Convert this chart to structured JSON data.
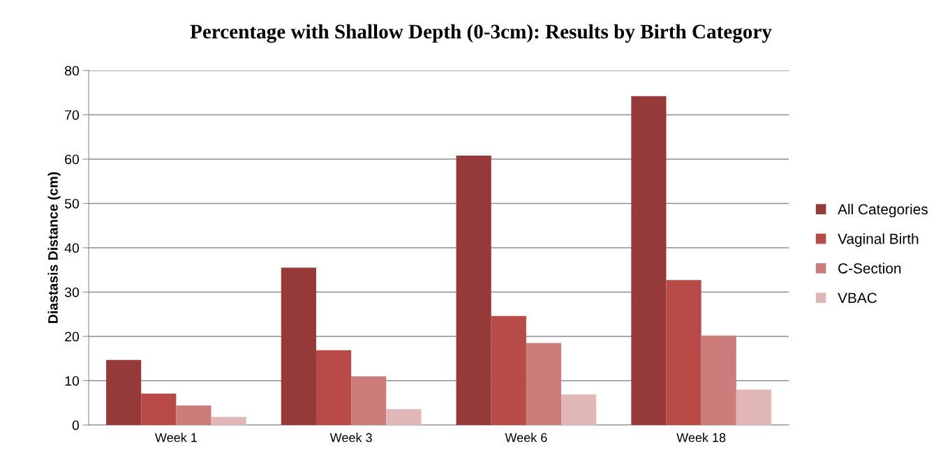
{
  "chart_data": {
    "type": "bar",
    "title": "Percentage with Shallow Depth (0-3cm): Results by Birth Category",
    "ylabel": "Diastasis Distance (cm)",
    "categories": [
      "Week 1",
      "Week 3",
      "Week 6",
      "Week 18"
    ],
    "series": [
      {
        "name": "All Categories",
        "color": "#953a39",
        "values": [
          14.7,
          35.5,
          60.8,
          74.2
        ]
      },
      {
        "name": "Vaginal Birth",
        "color": "#b84b48",
        "values": [
          7.1,
          16.9,
          24.6,
          32.7
        ]
      },
      {
        "name": "C-Section",
        "color": "#cc7d7b",
        "values": [
          4.4,
          11.0,
          18.5,
          20.2
        ]
      },
      {
        "name": "VBAC",
        "color": "#e0b6b6",
        "values": [
          1.8,
          3.6,
          6.9,
          8.0
        ]
      }
    ],
    "ylim": [
      0,
      80
    ],
    "yticks": [
      0,
      10,
      20,
      30,
      40,
      50,
      60,
      70,
      80
    ],
    "grid": "y",
    "legend": "right"
  }
}
